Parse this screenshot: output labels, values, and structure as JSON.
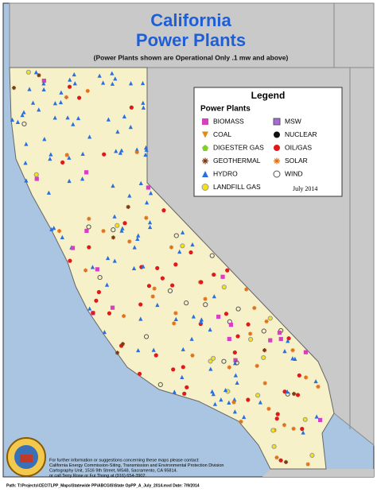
{
  "header": {
    "title_line1": "California",
    "title_line2": "Power Plants",
    "subtitle": "(Power Plants shown are Operational Only .1 mw and above)"
  },
  "legend": {
    "title": "Legend",
    "heading": "Power Plants",
    "date": "July 2014",
    "items": [
      {
        "label": "BIOMASS",
        "color": "#d63fbf"
      },
      {
        "label": "COAL",
        "color": "#e08a1a"
      },
      {
        "label": "DIGESTER GAS",
        "color": "#7fd12a"
      },
      {
        "label": "GEOTHERMAL",
        "color": "#7a3b10"
      },
      {
        "label": "HYDRO",
        "color": "#2a6fe0"
      },
      {
        "label": "LANDFILL GAS",
        "color": "#f2e21a"
      },
      {
        "label": "MSW",
        "color": "#a66bd6"
      },
      {
        "label": "NUCLEAR",
        "color": "#111111"
      },
      {
        "label": "OIL/GAS",
        "color": "#e01a1a"
      },
      {
        "label": "SOLAR",
        "color": "#e0701a"
      },
      {
        "label": "WIND",
        "color": "#555555"
      }
    ]
  },
  "footer": {
    "lines": [
      "For further information or suggestions concerning these maps please contact:",
      "California Energy Commission-Siting, Transmission and Environmental Protection Division",
      "Cartography Unit, 1516 9th Street, MS48, Sacramento, CA 95814.",
      "or call Terry Rose or Fui Thong at (916) 654-3902."
    ],
    "path": "Path: T:\\Projects\\CEC\\TLPP_Maps\\Statewide PP\\ABCGIS\\State OpPP_A_July_2014.mxd Date: 7/9/2014"
  }
}
